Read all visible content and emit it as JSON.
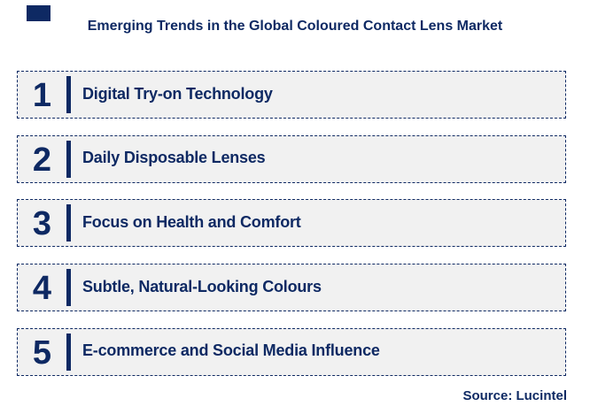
{
  "header": {
    "title": "Emerging Trends in the Global Coloured Contact Lens Market"
  },
  "trends": [
    {
      "number": "1",
      "label": "Digital Try-on Technology"
    },
    {
      "number": "2",
      "label": "Daily Disposable Lenses"
    },
    {
      "number": "3",
      "label": "Focus on Health and Comfort"
    },
    {
      "number": "4",
      "label": "Subtle, Natural-Looking Colours"
    },
    {
      "number": "5",
      "label": "E-commerce and Social Media Influence"
    }
  ],
  "footer": {
    "source": "Source: Lucintel"
  },
  "colors": {
    "navy": "#0e2963",
    "row_background": "#f1f1f1",
    "page_background": "#ffffff"
  },
  "icons": {
    "corner_square": "filled-navy-rectangle"
  }
}
